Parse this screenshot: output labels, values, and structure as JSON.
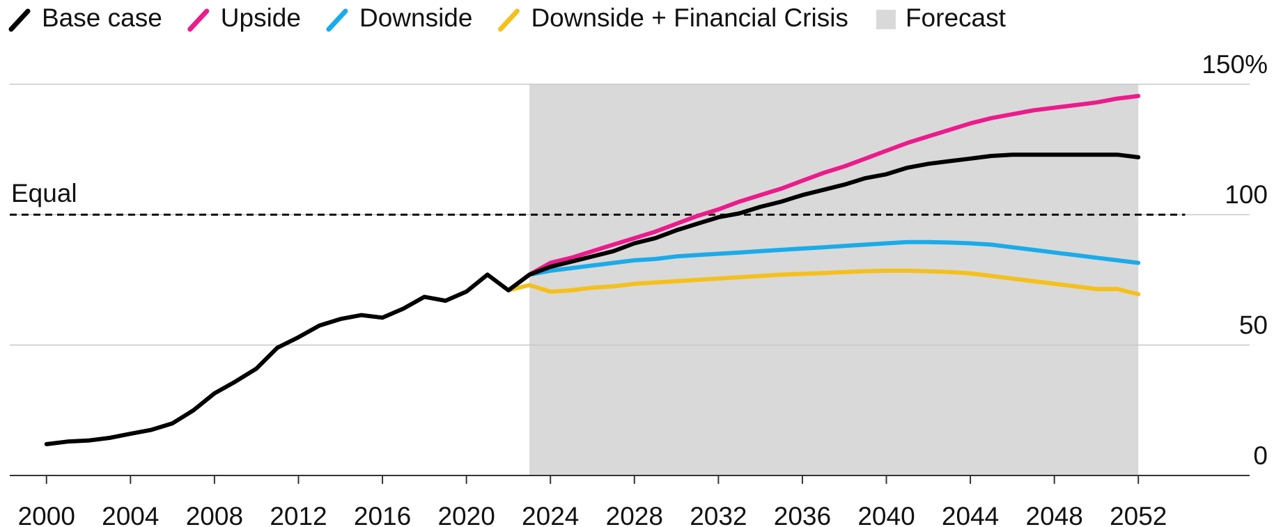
{
  "chart_data": {
    "type": "line",
    "x": [
      2000,
      2001,
      2002,
      2003,
      2004,
      2005,
      2006,
      2007,
      2008,
      2009,
      2010,
      2011,
      2012,
      2013,
      2014,
      2015,
      2016,
      2017,
      2018,
      2019,
      2020,
      2021,
      2022,
      2023,
      2024,
      2025,
      2026,
      2027,
      2028,
      2029,
      2030,
      2031,
      2032,
      2033,
      2034,
      2035,
      2036,
      2037,
      2038,
      2039,
      2040,
      2041,
      2042,
      2043,
      2044,
      2045,
      2046,
      2047,
      2048,
      2049,
      2050,
      2051,
      2052
    ],
    "series": [
      {
        "name": "Base case",
        "color": "#000000",
        "values": [
          12,
          13,
          13.4,
          14.4,
          16,
          17.5,
          20,
          25,
          31.5,
          36,
          41,
          49,
          53,
          57.5,
          60,
          61.5,
          60.5,
          64,
          68.5,
          67,
          70.5,
          77,
          71,
          77,
          80,
          82,
          84,
          86,
          89,
          91,
          94,
          96.5,
          99,
          100.5,
          103,
          105,
          107.5,
          109.5,
          111.5,
          114,
          115.5,
          118,
          119.5,
          120.5,
          121.5,
          122.5,
          123,
          123,
          123,
          123,
          123,
          123,
          122
        ]
      },
      {
        "name": "Upside",
        "color": "#ec1b8c",
        "values": [
          null,
          null,
          null,
          null,
          null,
          null,
          null,
          null,
          null,
          null,
          null,
          null,
          null,
          null,
          null,
          null,
          null,
          null,
          null,
          null,
          null,
          null,
          71,
          77,
          81.5,
          83.5,
          86,
          88.5,
          91,
          93.5,
          96.5,
          99.5,
          102,
          105,
          107.5,
          110,
          113,
          116,
          118.5,
          121.5,
          124.5,
          127.5,
          130,
          132.5,
          135,
          137,
          138.5,
          140,
          141,
          142,
          143,
          144.5,
          145.5
        ]
      },
      {
        "name": "Downside",
        "color": "#1aabea",
        "values": [
          null,
          null,
          null,
          null,
          null,
          null,
          null,
          null,
          null,
          null,
          null,
          null,
          null,
          null,
          null,
          null,
          null,
          null,
          null,
          null,
          null,
          null,
          71,
          77,
          78.5,
          79.5,
          80.5,
          81.5,
          82.5,
          83,
          84,
          84.5,
          85,
          85.5,
          86,
          86.5,
          87,
          87.5,
          88,
          88.5,
          89,
          89.5,
          89.5,
          89.3,
          89,
          88.5,
          87.5,
          86.5,
          85.5,
          84.5,
          83.5,
          82.5,
          81.5
        ]
      },
      {
        "name": "Downside + Financial Crisis",
        "color": "#f5c01a",
        "values": [
          null,
          null,
          null,
          null,
          null,
          null,
          null,
          null,
          null,
          null,
          null,
          null,
          null,
          null,
          null,
          null,
          null,
          null,
          null,
          null,
          null,
          null,
          71,
          73,
          70.5,
          71,
          72,
          72.5,
          73.5,
          74,
          74.5,
          75,
          75.5,
          76,
          76.5,
          77,
          77.3,
          77.6,
          78,
          78.3,
          78.5,
          78.5,
          78.3,
          78,
          77.5,
          76.5,
          75.5,
          74.5,
          73.5,
          72.5,
          71.5,
          71.5,
          69.5
        ]
      }
    ],
    "forecast": {
      "label": "Forecast",
      "start": 2023,
      "end": 2052,
      "color": "#d9d9d9"
    },
    "reference_line": {
      "label": "Equal",
      "value": 100
    },
    "xlim": [
      1998.25,
      2057.3
    ],
    "xticks": [
      2000,
      2004,
      2008,
      2012,
      2016,
      2020,
      2024,
      2028,
      2032,
      2036,
      2040,
      2044,
      2048,
      2052
    ],
    "ylim": [
      0,
      150
    ],
    "yticks": [
      0,
      50,
      100,
      {
        "value": 150,
        "label": "150%"
      }
    ],
    "grid": true,
    "legend": "top"
  }
}
